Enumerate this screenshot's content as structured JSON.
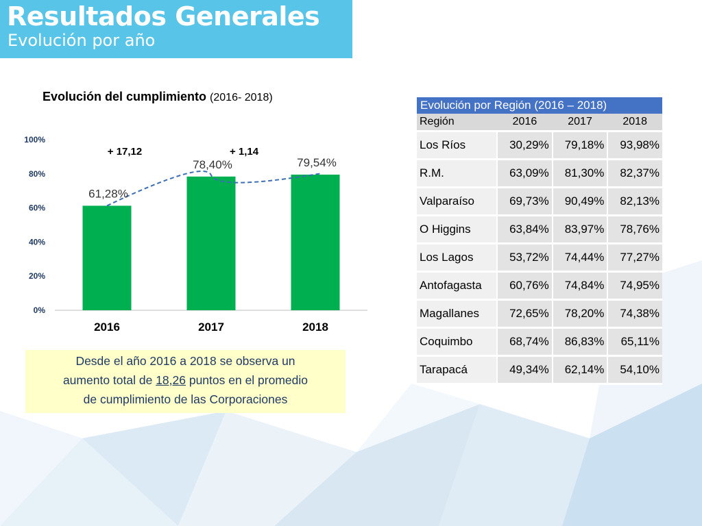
{
  "header": {
    "title": "Resultados Generales",
    "subtitle": "Evolución por año"
  },
  "chart_title": {
    "bold": "Evolución del cumplimiento",
    "range": "(2016- 2018)"
  },
  "chart_data": {
    "type": "bar",
    "title": "Evolución del cumplimiento (2016- 2018)",
    "categories": [
      "2016",
      "2017",
      "2018"
    ],
    "values": [
      61.28,
      78.4,
      79.54
    ],
    "data_labels": [
      "61,28%",
      "78,40%",
      "79,54%"
    ],
    "yticks": [
      "0%",
      "20%",
      "40%",
      "60%",
      "80%",
      "100%"
    ],
    "ylim": [
      0,
      100
    ],
    "bar_color": "#00b050",
    "trendline": "dashed polynomial",
    "trend_color": "#3b6fb5",
    "grid": false,
    "annotations": [
      "+ 17,12",
      "+ 1,14"
    ]
  },
  "note": {
    "line1": "Desde el año 2016 a 2018 se observa un",
    "line2_pre": "aumento total de ",
    "line2_value": "18,26",
    "line2_post": " puntos en el promedio",
    "line3": "de cumplimiento de las Corporaciones"
  },
  "table": {
    "caption": "Evolución por Región (2016 – 2018)",
    "headers": [
      "Región",
      "2016",
      "2017",
      "2018"
    ],
    "rows": [
      [
        "Los Ríos",
        "30,29%",
        "79,18%",
        "93,98%"
      ],
      [
        "R.M.",
        "63,09%",
        "81,30%",
        "82,37%"
      ],
      [
        "Valparaíso",
        "69,73%",
        "90,49%",
        "82,13%"
      ],
      [
        "O Higgins",
        "63,84%",
        "83,97%",
        "78,76%"
      ],
      [
        "Los Lagos",
        "53,72%",
        "74,44%",
        "77,27%"
      ],
      [
        "Antofagasta",
        "60,76%",
        "74,84%",
        "74,95%"
      ],
      [
        "Magallanes",
        "72,65%",
        "78,20%",
        "74,38%"
      ],
      [
        "Coquimbo",
        "68,74%",
        "86,83%",
        "65,11%"
      ],
      [
        "Tarapacá",
        "49,34%",
        "62,14%",
        "54,10%"
      ]
    ]
  },
  "colors": {
    "header_bg": "#57c4e8",
    "table_caption_bg": "#4472c4",
    "note_bg": "#ffffc9"
  }
}
